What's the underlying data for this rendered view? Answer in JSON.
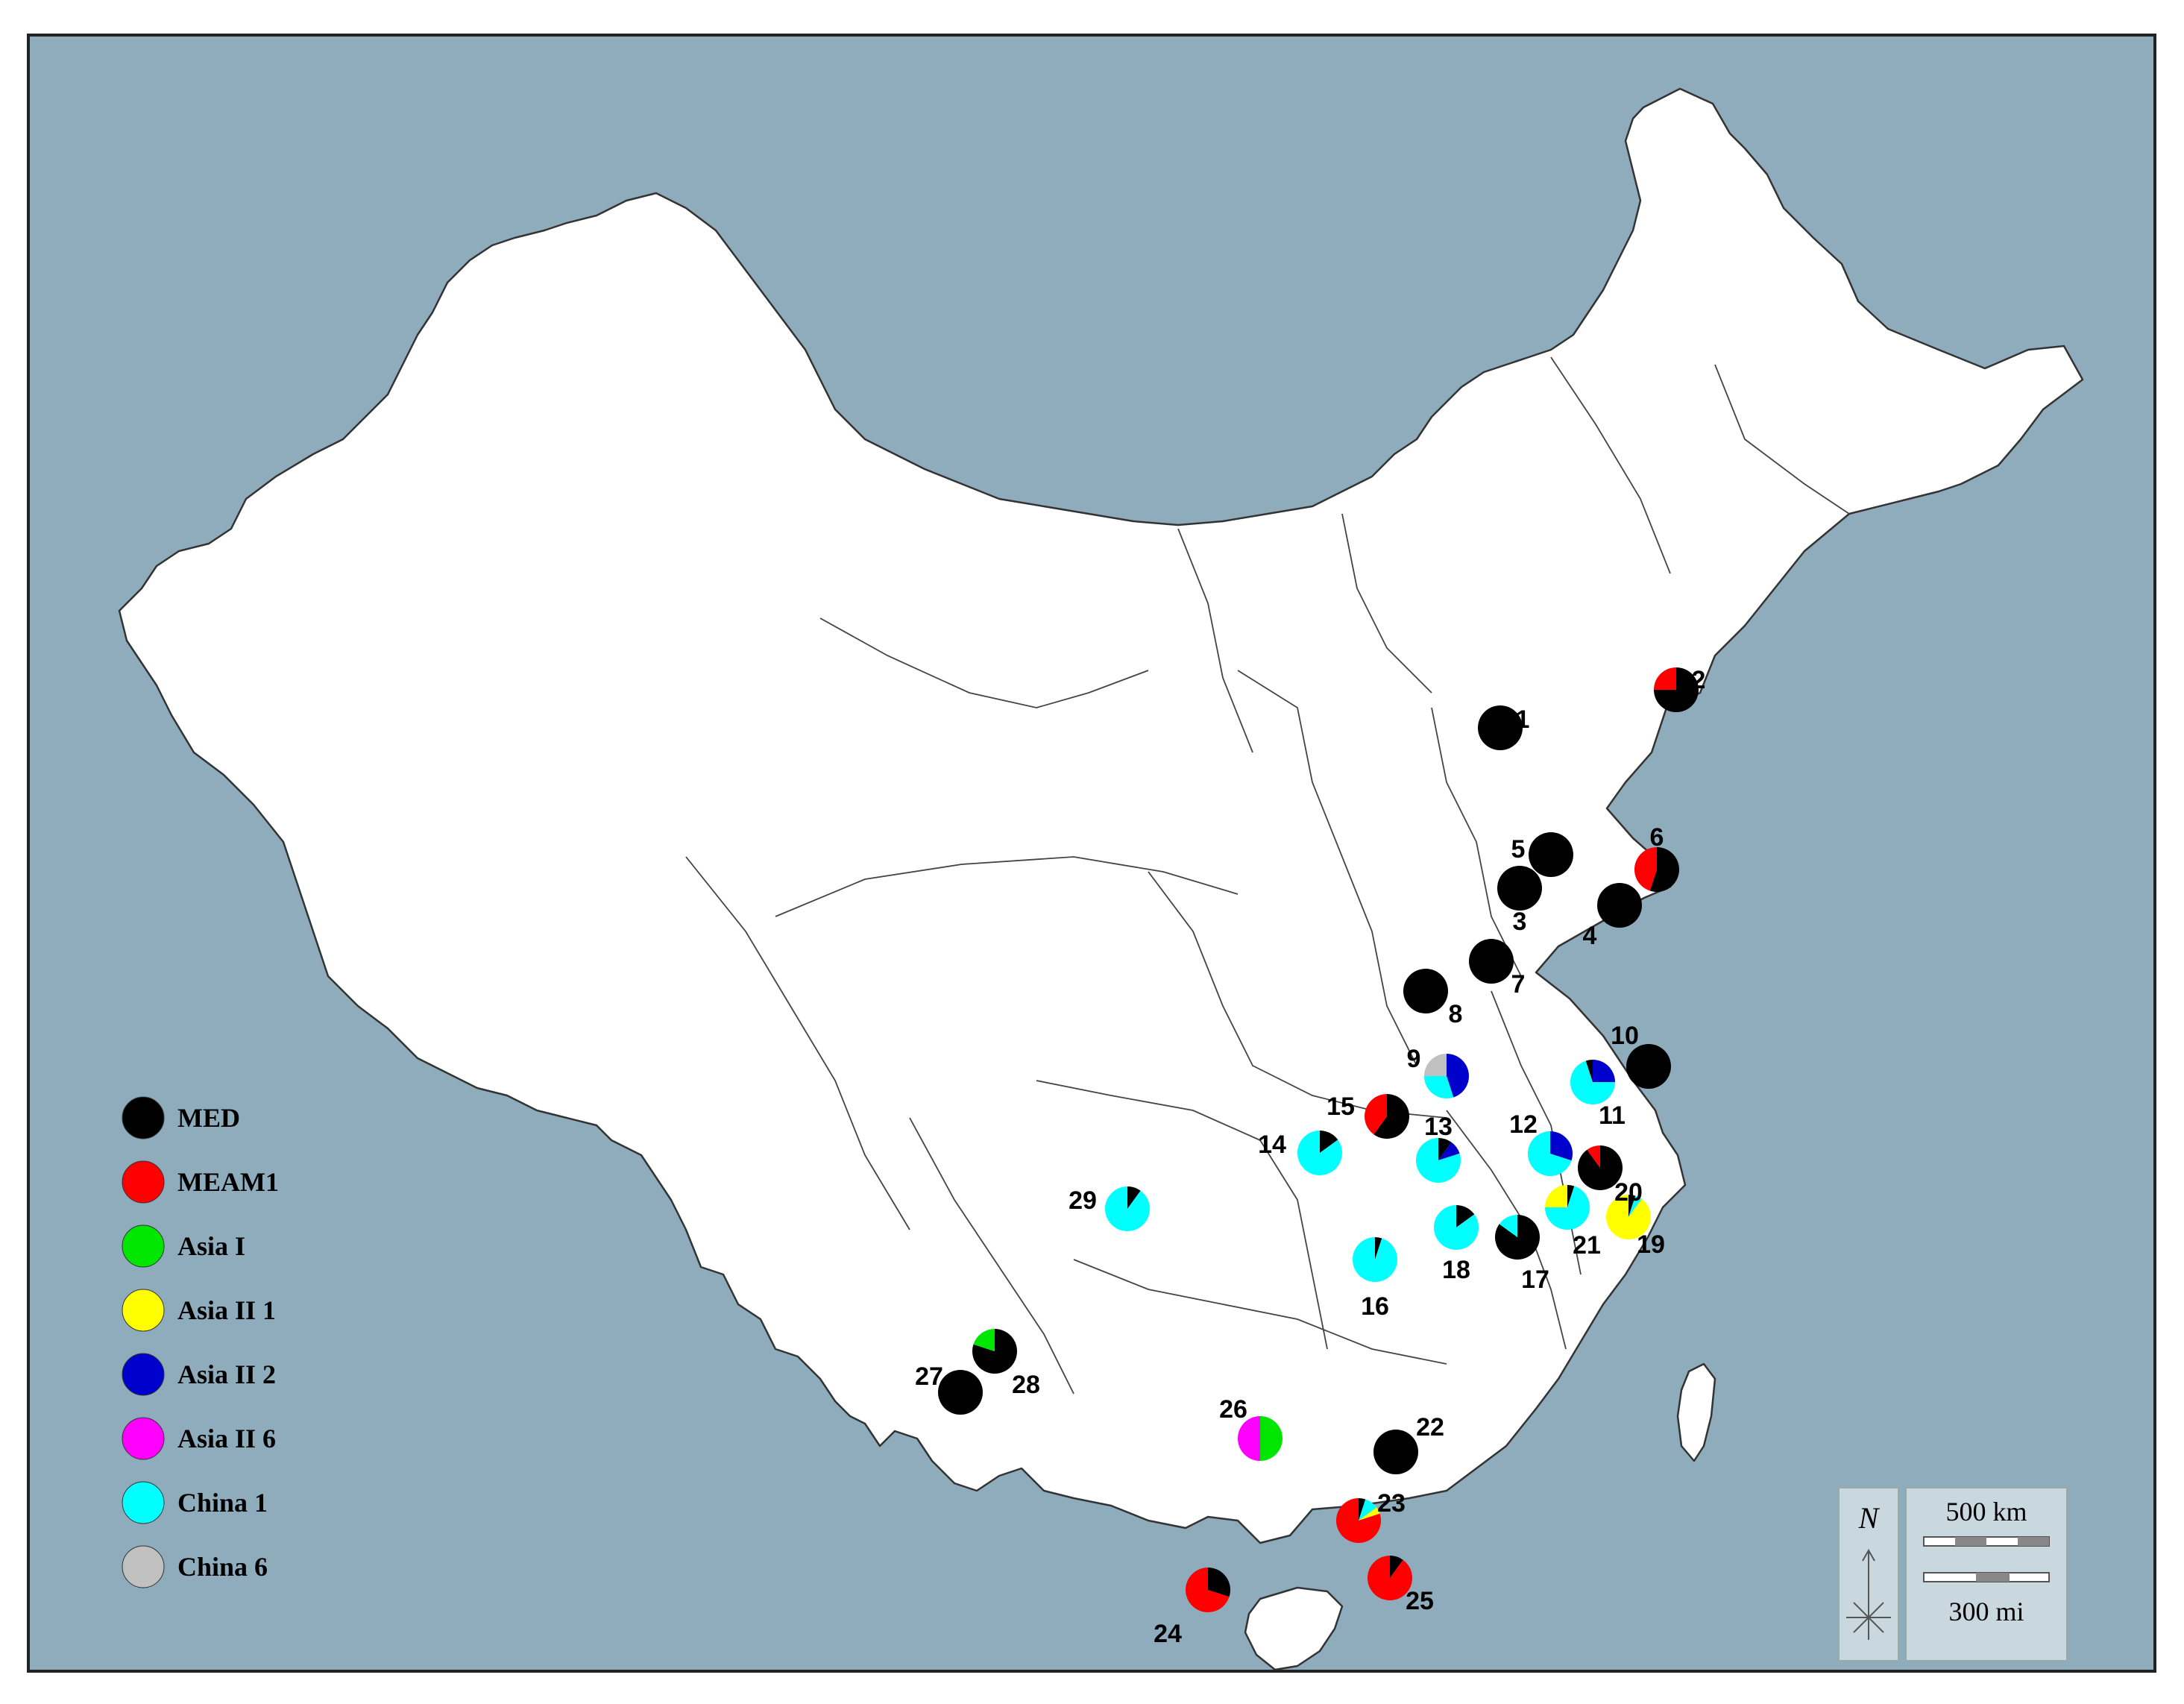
{
  "legend": [
    {
      "label": "MED",
      "color": "#000000"
    },
    {
      "label": "MEAM1",
      "color": "#ff0000"
    },
    {
      "label": "Asia I",
      "color": "#00e600"
    },
    {
      "label": "Asia II 1",
      "color": "#ffff00"
    },
    {
      "label": "Asia II 2",
      "color": "#0000cc"
    },
    {
      "label": "Asia II 6",
      "color": "#ff00ff"
    },
    {
      "label": "China 1",
      "color": "#00ffff"
    },
    {
      "label": "China 6",
      "color": "#c0c0c0"
    }
  ],
  "scale": {
    "km": "500 km",
    "mi": "300 mi"
  },
  "north": "N",
  "sites": [
    {
      "id": "1",
      "comp": [
        {
          "t": "MED",
          "v": 1
        }
      ]
    },
    {
      "id": "2",
      "comp": [
        {
          "t": "MED",
          "v": 0.75
        },
        {
          "t": "MEAM1",
          "v": 0.25
        }
      ]
    },
    {
      "id": "3",
      "comp": [
        {
          "t": "MED",
          "v": 1
        }
      ]
    },
    {
      "id": "4",
      "comp": [
        {
          "t": "MED",
          "v": 1
        }
      ]
    },
    {
      "id": "5",
      "comp": [
        {
          "t": "MED",
          "v": 1
        }
      ]
    },
    {
      "id": "6",
      "comp": [
        {
          "t": "MED",
          "v": 0.55
        },
        {
          "t": "MEAM1",
          "v": 0.45
        }
      ]
    },
    {
      "id": "7",
      "comp": [
        {
          "t": "MED",
          "v": 1
        }
      ]
    },
    {
      "id": "8",
      "comp": [
        {
          "t": "MED",
          "v": 1
        }
      ]
    },
    {
      "id": "9",
      "comp": [
        {
          "t": "Asia II 2",
          "v": 0.45
        },
        {
          "t": "China 1",
          "v": 0.3
        },
        {
          "t": "China 6",
          "v": 0.25
        }
      ]
    },
    {
      "id": "10",
      "comp": [
        {
          "t": "MED",
          "v": 1
        }
      ]
    },
    {
      "id": "11",
      "comp": [
        {
          "t": "Asia II 2",
          "v": 0.25
        },
        {
          "t": "China 1",
          "v": 0.7
        },
        {
          "t": "MED",
          "v": 0.05
        }
      ]
    },
    {
      "id": "12",
      "comp": [
        {
          "t": "Asia II 2",
          "v": 0.3
        },
        {
          "t": "China 1",
          "v": 0.7
        }
      ]
    },
    {
      "id": "13",
      "comp": [
        {
          "t": "MED",
          "v": 0.1
        },
        {
          "t": "Asia II 2",
          "v": 0.1
        },
        {
          "t": "China 1",
          "v": 0.8
        }
      ]
    },
    {
      "id": "14",
      "comp": [
        {
          "t": "MED",
          "v": 0.15
        },
        {
          "t": "China 1",
          "v": 0.85
        }
      ]
    },
    {
      "id": "15",
      "comp": [
        {
          "t": "MED",
          "v": 0.6
        },
        {
          "t": "MEAM1",
          "v": 0.4
        }
      ]
    },
    {
      "id": "16",
      "comp": [
        {
          "t": "MED",
          "v": 0.05
        },
        {
          "t": "China 1",
          "v": 0.95
        }
      ]
    },
    {
      "id": "17",
      "comp": [
        {
          "t": "MED",
          "v": 0.85
        },
        {
          "t": "China 1",
          "v": 0.15
        }
      ]
    },
    {
      "id": "18",
      "comp": [
        {
          "t": "MED",
          "v": 0.15
        },
        {
          "t": "China 1",
          "v": 0.85
        }
      ]
    },
    {
      "id": "19",
      "comp": [
        {
          "t": "MED",
          "v": 0.05
        },
        {
          "t": "China 1",
          "v": 0.05
        },
        {
          "t": "Asia II 1",
          "v": 0.9
        }
      ]
    },
    {
      "id": "20",
      "comp": [
        {
          "t": "MED",
          "v": 0.9
        },
        {
          "t": "MEAM1",
          "v": 0.1
        }
      ]
    },
    {
      "id": "21",
      "comp": [
        {
          "t": "MED",
          "v": 0.05
        },
        {
          "t": "China 1",
          "v": 0.7
        },
        {
          "t": "Asia II 1",
          "v": 0.25
        }
      ]
    },
    {
      "id": "22",
      "comp": [
        {
          "t": "MED",
          "v": 1
        }
      ]
    },
    {
      "id": "23",
      "comp": [
        {
          "t": "MED",
          "v": 0.05
        },
        {
          "t": "China 1",
          "v": 0.1
        },
        {
          "t": "Asia II 1",
          "v": 0.05
        },
        {
          "t": "MEAM1",
          "v": 0.8
        }
      ]
    },
    {
      "id": "24",
      "comp": [
        {
          "t": "MED",
          "v": 0.3
        },
        {
          "t": "MEAM1",
          "v": 0.7
        }
      ]
    },
    {
      "id": "25",
      "comp": [
        {
          "t": "MED",
          "v": 0.1
        },
        {
          "t": "MEAM1",
          "v": 0.9
        }
      ]
    },
    {
      "id": "26",
      "comp": [
        {
          "t": "Asia I",
          "v": 0.5
        },
        {
          "t": "Asia II 6",
          "v": 0.5
        }
      ]
    },
    {
      "id": "27",
      "comp": [
        {
          "t": "MED",
          "v": 1
        }
      ]
    },
    {
      "id": "28",
      "comp": [
        {
          "t": "MED",
          "v": 0.8
        },
        {
          "t": "Asia I",
          "v": 0.2
        }
      ]
    },
    {
      "id": "29",
      "comp": [
        {
          "t": "MED",
          "v": 0.1
        },
        {
          "t": "China 1",
          "v": 0.9
        }
      ]
    }
  ]
}
